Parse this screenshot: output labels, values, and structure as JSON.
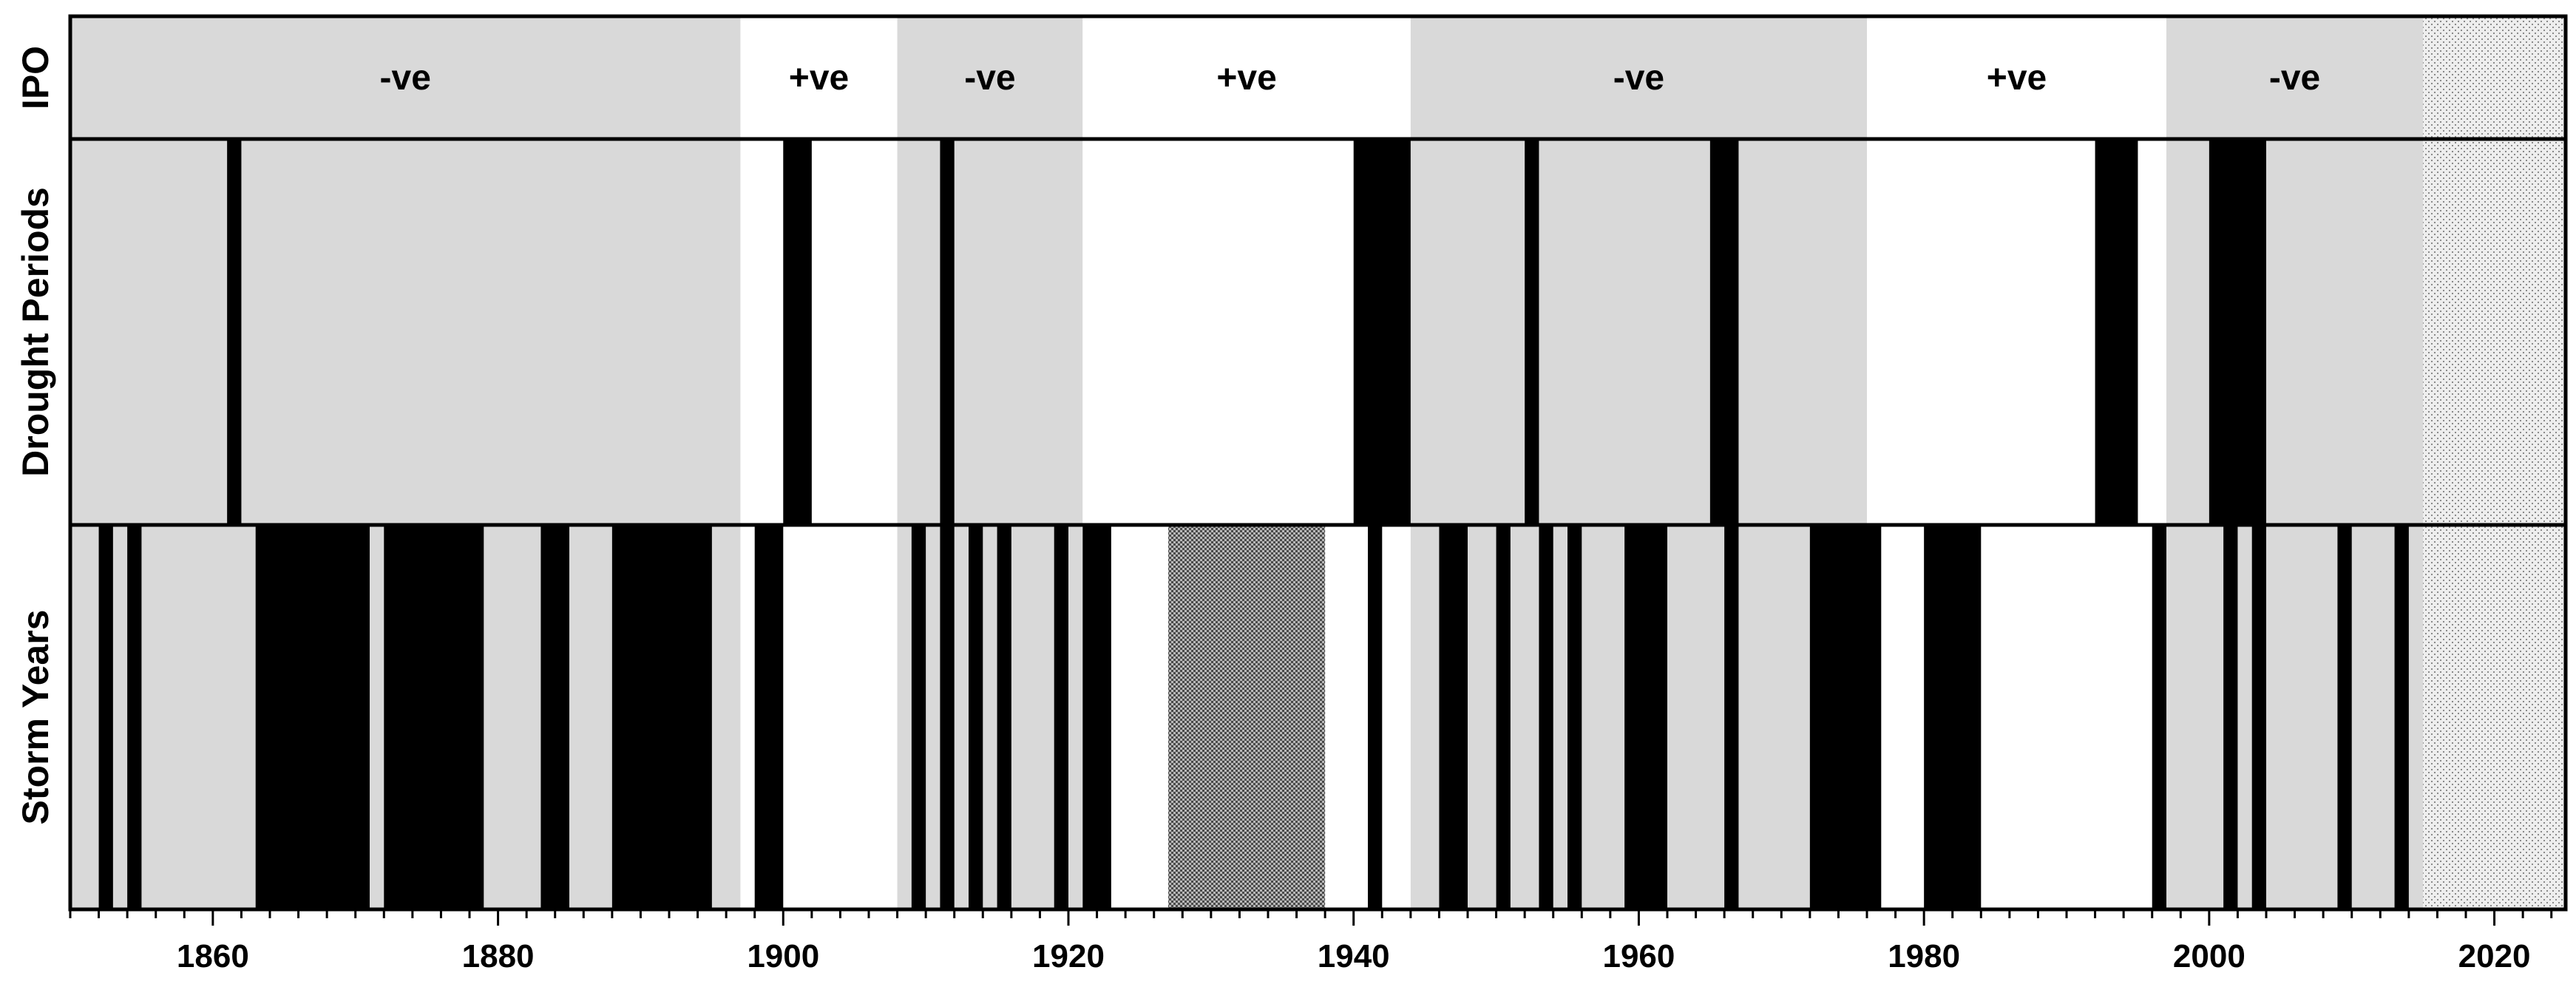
{
  "chart_data": {
    "type": "timeline",
    "x_axis": {
      "range": [
        1850,
        2025
      ],
      "ticks": [
        1860,
        1880,
        1900,
        1920,
        1940,
        1960,
        1980,
        2000,
        2020
      ],
      "tick_labels": [
        "1860",
        "1880",
        "1900",
        "1920",
        "1940",
        "1960",
        "1980",
        "2000",
        "2020"
      ]
    },
    "rows": [
      {
        "key": "ipo",
        "label": "IPO"
      },
      {
        "key": "drought",
        "label": "Drought Periods"
      },
      {
        "key": "storm",
        "label": "Storm Years"
      }
    ],
    "ipo_phases": [
      {
        "start": 1850,
        "end": 1897,
        "phase": "negative",
        "label": "-ve"
      },
      {
        "start": 1897,
        "end": 1908,
        "phase": "positive",
        "label": "+ve"
      },
      {
        "start": 1908,
        "end": 1921,
        "phase": "negative",
        "label": "-ve"
      },
      {
        "start": 1921,
        "end": 1944,
        "phase": "positive",
        "label": "+ve"
      },
      {
        "start": 1944,
        "end": 1976,
        "phase": "negative",
        "label": "-ve"
      },
      {
        "start": 1976,
        "end": 1997,
        "phase": "positive",
        "label": "+ve"
      },
      {
        "start": 1997,
        "end": 2015,
        "phase": "negative",
        "label": "-ve"
      }
    ],
    "no_data_periods": [
      {
        "row": "all",
        "start": 2015,
        "end": 2025
      },
      {
        "row": "storm",
        "start": 1927,
        "end": 1938
      }
    ],
    "drought_periods": [
      {
        "start": 1861,
        "end": 1862
      },
      {
        "start": 1900,
        "end": 1902
      },
      {
        "start": 1911,
        "end": 1912
      },
      {
        "start": 1940,
        "end": 1944
      },
      {
        "start": 1952,
        "end": 1953
      },
      {
        "start": 1965,
        "end": 1967
      },
      {
        "start": 1992,
        "end": 1995
      },
      {
        "start": 2000,
        "end": 2004
      }
    ],
    "storm_years": [
      {
        "start": 1852,
        "end": 1853
      },
      {
        "start": 1854,
        "end": 1855
      },
      {
        "start": 1863,
        "end": 1871
      },
      {
        "start": 1872,
        "end": 1879
      },
      {
        "start": 1883,
        "end": 1885
      },
      {
        "start": 1888,
        "end": 1895
      },
      {
        "start": 1898,
        "end": 1900
      },
      {
        "start": 1909,
        "end": 1910
      },
      {
        "start": 1911,
        "end": 1912
      },
      {
        "start": 1913,
        "end": 1914
      },
      {
        "start": 1915,
        "end": 1916
      },
      {
        "start": 1919,
        "end": 1920
      },
      {
        "start": 1921,
        "end": 1923
      },
      {
        "start": 1941,
        "end": 1942
      },
      {
        "start": 1946,
        "end": 1948
      },
      {
        "start": 1950,
        "end": 1951
      },
      {
        "start": 1953,
        "end": 1954
      },
      {
        "start": 1955,
        "end": 1956
      },
      {
        "start": 1959,
        "end": 1962
      },
      {
        "start": 1966,
        "end": 1967
      },
      {
        "start": 1972,
        "end": 1977
      },
      {
        "start": 1980,
        "end": 1984
      },
      {
        "start": 1996,
        "end": 1997
      },
      {
        "start": 2001,
        "end": 2002
      },
      {
        "start": 2003,
        "end": 2004
      },
      {
        "start": 2009,
        "end": 2010
      },
      {
        "start": 2013,
        "end": 2014
      }
    ],
    "colors": {
      "negative_phase": "#d9d9d9",
      "positive_phase": "#ffffff",
      "event": "#000000",
      "no_data_light": "#e8e8e8",
      "no_data_dark": "#909090"
    }
  }
}
